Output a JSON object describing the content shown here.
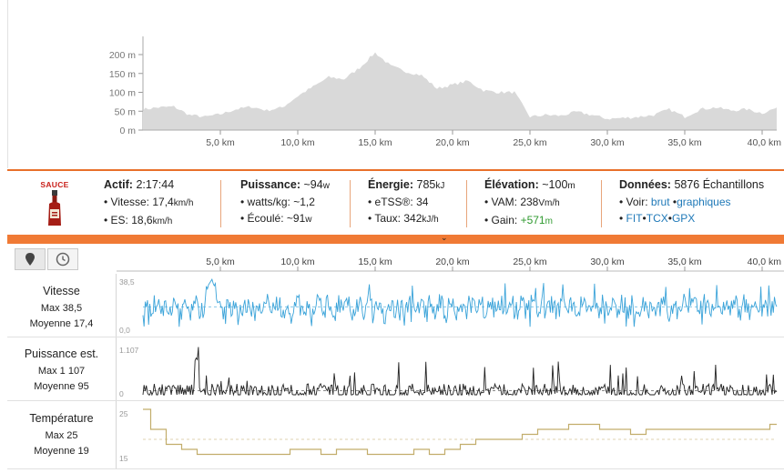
{
  "elevation": {
    "y_ticks": [
      "200 m",
      "150 m",
      "100 m",
      "50 m",
      "0 m"
    ],
    "x_ticks": [
      "5,0 km",
      "10,0 km",
      "15,0 km",
      "20,0 km",
      "25,0 km",
      "30,0 km",
      "35,0 km",
      "40,0 km"
    ],
    "fill_color": "#d9d9d9",
    "profile_km": [
      0,
      1,
      2,
      3,
      4,
      5,
      6,
      7,
      8,
      9,
      10,
      11,
      12,
      13,
      14,
      15,
      16,
      17,
      18,
      19,
      20,
      21,
      22,
      23,
      24,
      25,
      26,
      27,
      28,
      29,
      30,
      31,
      32,
      33,
      34,
      35,
      36,
      37,
      38,
      39,
      40,
      41
    ],
    "profile_m": [
      55,
      60,
      62,
      40,
      35,
      42,
      55,
      62,
      52,
      60,
      90,
      115,
      140,
      135,
      165,
      205,
      170,
      155,
      145,
      110,
      120,
      130,
      105,
      100,
      100,
      35,
      40,
      38,
      48,
      40,
      30,
      32,
      35,
      40,
      55,
      35,
      55,
      60,
      52,
      55,
      45,
      60
    ]
  },
  "stats": {
    "logo": "SAUCE",
    "actif": {
      "label": "Actif:",
      "value": "2:17:44"
    },
    "vitesse": {
      "label": "• Vitesse:",
      "value": "17,4",
      "unit": "km/h"
    },
    "es": {
      "label": "• ES:",
      "value": "18,6",
      "unit": "km/h"
    },
    "puissance": {
      "label": "Puissance:",
      "value": "~94",
      "unit": "w"
    },
    "wattskg": {
      "label": "• watts/kg:",
      "value": "~1,2"
    },
    "ecoule": {
      "label": "• Écoulé:",
      "value": "~91",
      "unit": "w"
    },
    "energie": {
      "label": "Énergie:",
      "value": "785",
      "unit": "kJ"
    },
    "etss": {
      "label": "• eTSS®:",
      "value": "34"
    },
    "taux": {
      "label": "• Taux:",
      "value": "342",
      "unit": "kJ/h"
    },
    "elevation": {
      "label": "Élévation:",
      "value": "~100",
      "unit": "m"
    },
    "vam": {
      "label": "• VAM:",
      "value": "238",
      "unit": "Vm/h"
    },
    "gain": {
      "label": "• Gain:",
      "value": "+571",
      "unit": "m"
    },
    "donnees": {
      "label": "Données:",
      "value": "5876 Échantillons"
    },
    "voir": {
      "label": "• Voir:",
      "link1": "brut",
      "dot": "•",
      "link2": "graphiques"
    },
    "export": {
      "bullet": "•",
      "fit": "FIT",
      "tcx": "TCX",
      "gpx": "GPX",
      "sep": "•"
    }
  },
  "charts": {
    "x_ticks": [
      "5,0 km",
      "10,0 km",
      "15,0 km",
      "20,0 km",
      "25,0 km",
      "30,0 km",
      "35,0 km",
      "40,0 km"
    ],
    "rows": [
      {
        "name": "Vitesse",
        "max_label": "Max 38,5",
        "avg_label": "Moyenne 17,4",
        "y_top": "38,5",
        "y_bottom": "0,0",
        "color": "#3aa3d9",
        "max": 38.5,
        "avg": 17.4,
        "min": 0
      },
      {
        "name": "Puissance est.",
        "max_label": "Max 1 107",
        "avg_label": "Moyenne 95",
        "y_top": "1.107",
        "y_bottom": "0",
        "color": "#222222",
        "max": 1107,
        "avg": 95,
        "min": 0
      },
      {
        "name": "Température",
        "max_label": "Max 25",
        "avg_label": "Moyenne 19",
        "y_top": "25",
        "y_bottom": "15",
        "color": "#c2ad6b",
        "max": 25,
        "avg": 19,
        "min": 15
      }
    ],
    "temperature_profile": {
      "km": [
        0,
        1,
        2,
        3,
        4,
        5,
        6,
        7,
        8,
        9,
        10,
        11,
        12,
        13,
        14,
        15,
        16,
        17,
        18,
        19,
        20,
        21,
        22,
        23,
        24,
        25,
        26,
        27,
        28,
        29,
        30,
        31,
        32,
        33,
        34,
        35,
        36,
        37,
        38,
        39,
        40,
        41
      ],
      "deg": [
        25,
        21,
        18,
        17,
        16,
        16,
        16,
        16,
        16,
        16,
        17,
        17,
        16,
        17,
        17,
        16,
        16,
        16,
        17,
        16,
        17,
        18,
        19,
        19,
        19,
        20,
        21,
        21,
        22,
        22,
        21,
        21,
        20,
        21,
        21,
        21,
        21,
        21,
        21,
        21,
        21,
        22
      ]
    }
  }
}
